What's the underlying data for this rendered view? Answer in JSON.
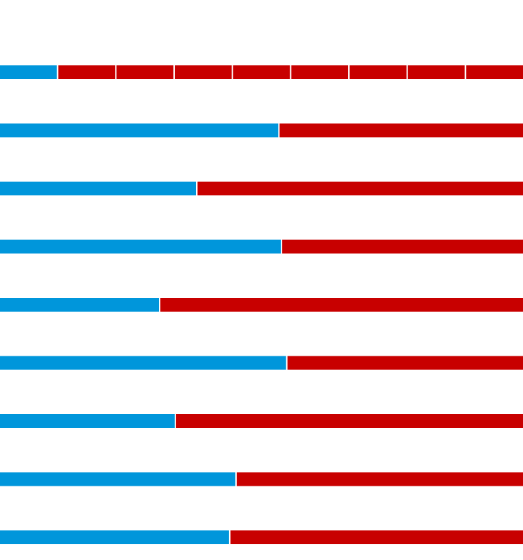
{
  "segmented_bar": {
    "segments": 9,
    "filled": 1
  },
  "bars": [
    53.2,
    37.5,
    53.7,
    30.4,
    54.7,
    33.4,
    45,
    43.8
  ],
  "colors": {
    "filled": "#0096db",
    "rest": "#c80000"
  }
}
